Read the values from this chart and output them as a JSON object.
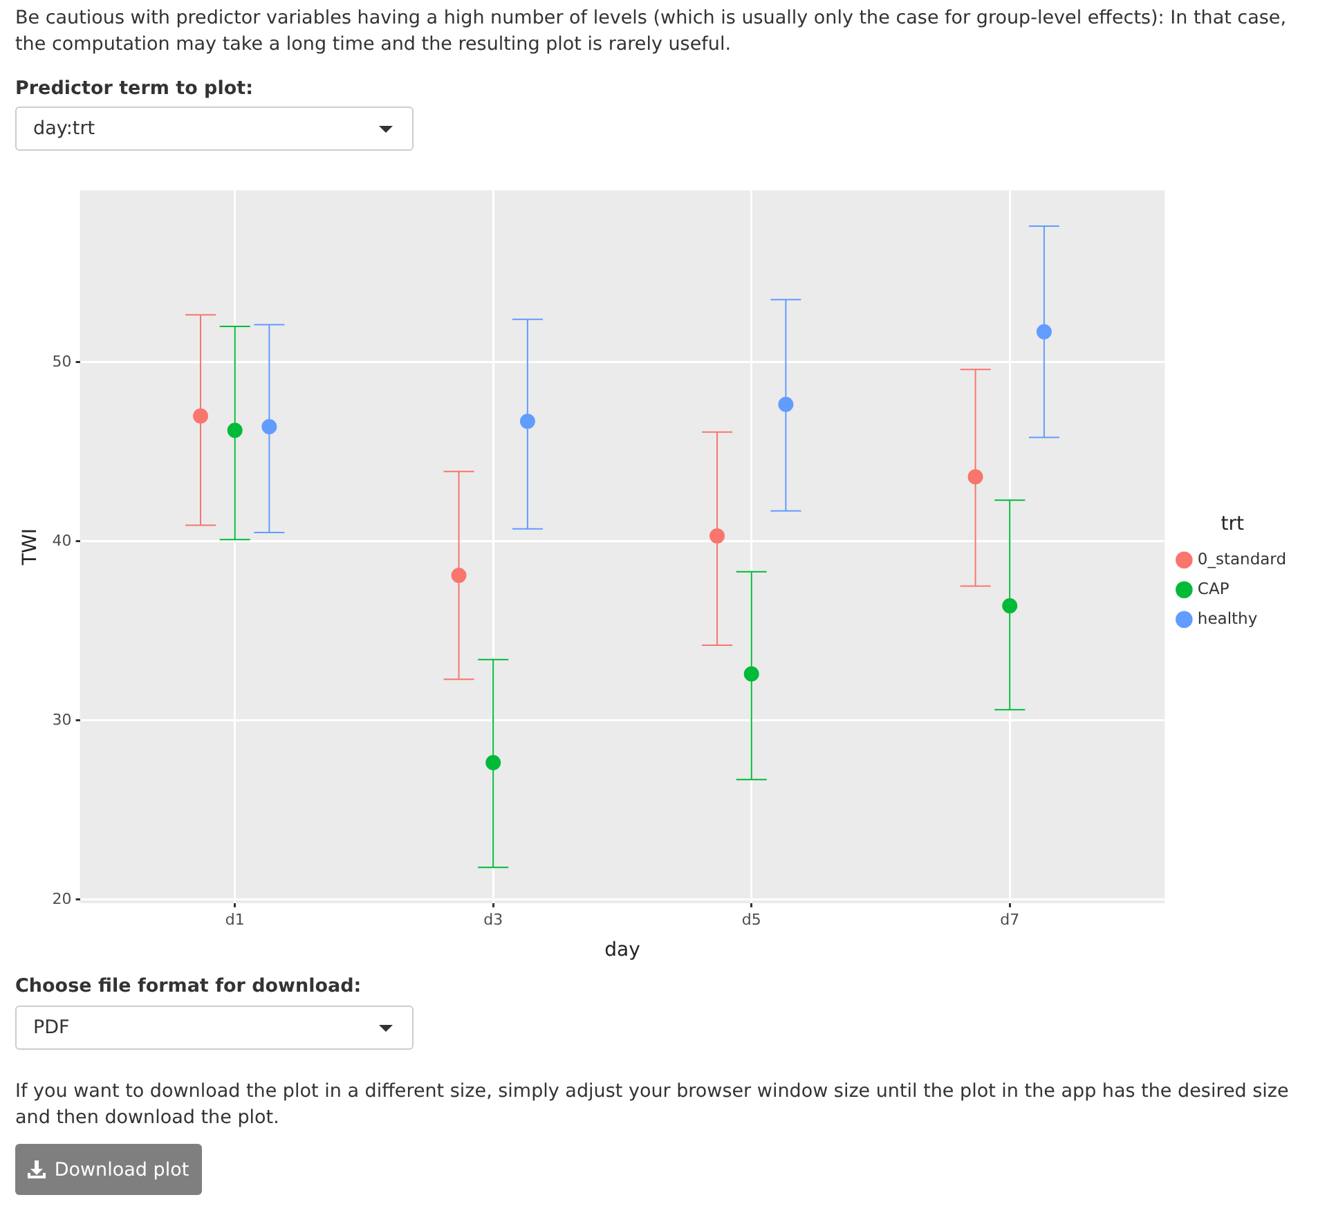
{
  "chart_data": {
    "type": "scatter",
    "xlabel": "day",
    "ylabel": "TWI",
    "legend_title": "trt",
    "categories": [
      "d1",
      "d3",
      "d5",
      "d7"
    ],
    "series": [
      {
        "name": "0_standard",
        "color": "#f8766d",
        "values": [
          47.0,
          38.1,
          40.3,
          43.6
        ],
        "errors": [
          [
            40.9,
            52.65
          ],
          [
            32.3,
            43.9
          ],
          [
            34.2,
            46.1
          ],
          [
            37.5,
            49.6
          ]
        ]
      },
      {
        "name": "CAP",
        "color": "#00ba38",
        "values": [
          46.2,
          27.65,
          32.6,
          36.4
        ],
        "errors": [
          [
            40.1,
            52.0
          ],
          [
            21.8,
            33.4
          ],
          [
            26.7,
            38.3
          ],
          [
            30.6,
            42.3
          ]
        ]
      },
      {
        "name": "healthy",
        "color": "#619cff",
        "values": [
          46.4,
          46.7,
          47.65,
          51.7
        ],
        "errors": [
          [
            40.5,
            52.1
          ],
          [
            40.7,
            52.4
          ],
          [
            41.7,
            53.5
          ],
          [
            45.8,
            57.6
          ]
        ]
      }
    ],
    "ylim": [
      19.8,
      59.6
    ],
    "yticks": [
      20,
      30,
      40,
      50
    ],
    "grid": true,
    "legend": "right",
    "marker": "circle",
    "annotations": [
      "Be cautious with predictor variables having a high number of levels (which is usually only the case for group-level effects): In that case, the computation may take a long time and the resulting plot is rarely useful.",
      "Predictor term to plot:",
      "day:trt",
      "Choose file format for download:",
      "PDF",
      "If you want to download the plot in a different size, simply adjust your browser window size until the plot in the app has the desired size and then download the plot.",
      "Download plot"
    ]
  }
}
